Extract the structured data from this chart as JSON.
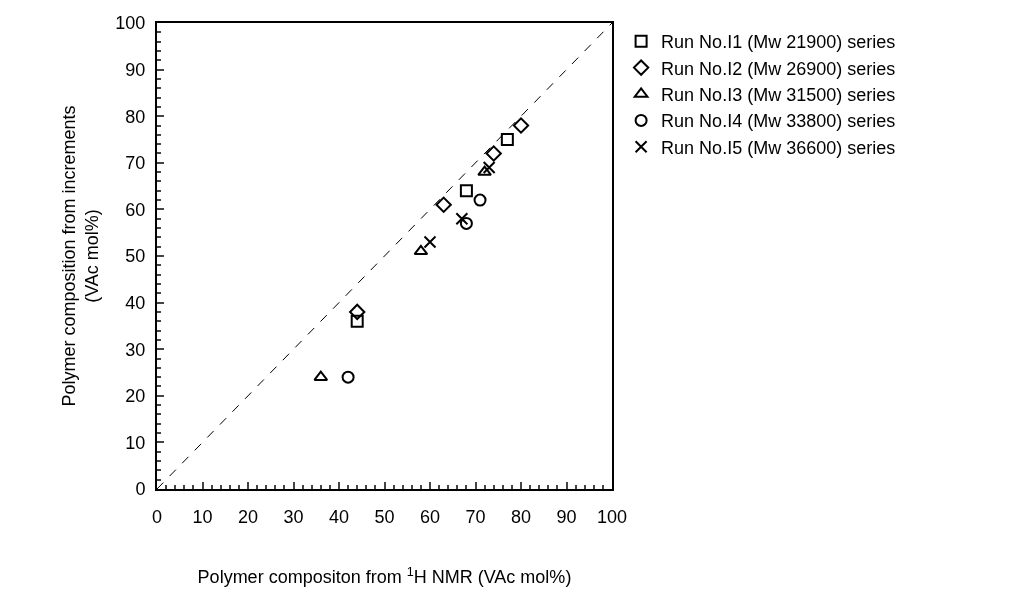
{
  "chart_data": {
    "type": "scatter",
    "xlabel": "Polymer compositon from $^{1}$H NMR (VAc mol%)",
    "ylabel": "Polymer composition from increments\n(VAc mol%)",
    "xlim": [
      0,
      100
    ],
    "ylim": [
      0,
      100
    ],
    "xticks": [
      0,
      10,
      20,
      30,
      40,
      50,
      60,
      70,
      80,
      90,
      100
    ],
    "yticks": [
      0,
      10,
      20,
      30,
      40,
      50,
      60,
      70,
      80,
      90,
      100
    ],
    "legend": "top right",
    "series": [
      {
        "name": "Run No.I1 (Mw 21900) series",
        "color": "#000000",
        "marker": "square",
        "x": [
          44,
          68,
          77
        ],
        "values": [
          36,
          64,
          75
        ]
      },
      {
        "name": "Run No.I2 (Mw 26900) series",
        "color": "#000000",
        "marker": "diamond",
        "x": [
          44,
          63,
          74,
          80
        ],
        "values": [
          38,
          61,
          72,
          78
        ]
      },
      {
        "name": "Run No.I3 (Mw 31500) series",
        "color": "#000000",
        "marker": "triangle",
        "x": [
          36,
          58,
          72
        ],
        "values": [
          24,
          51,
          68
        ]
      },
      {
        "name": "Run No.I4 (Mw 33800) series",
        "color": "#000000",
        "marker": "circle",
        "x": [
          42,
          71,
          68
        ],
        "values": [
          24,
          62,
          57
        ]
      },
      {
        "name": "Run No.I5 (Mw 36600) series",
        "color": "#000000",
        "marker": "cross",
        "x": [
          60,
          67,
          73
        ],
        "values": [
          53,
          58,
          69
        ]
      },
      {
        "type": "line",
        "color": "#000000",
        "marker": "none",
        "line_style": "dashed",
        "x": [
          0,
          100
        ],
        "values": [
          0,
          100
        ]
      }
    ]
  }
}
